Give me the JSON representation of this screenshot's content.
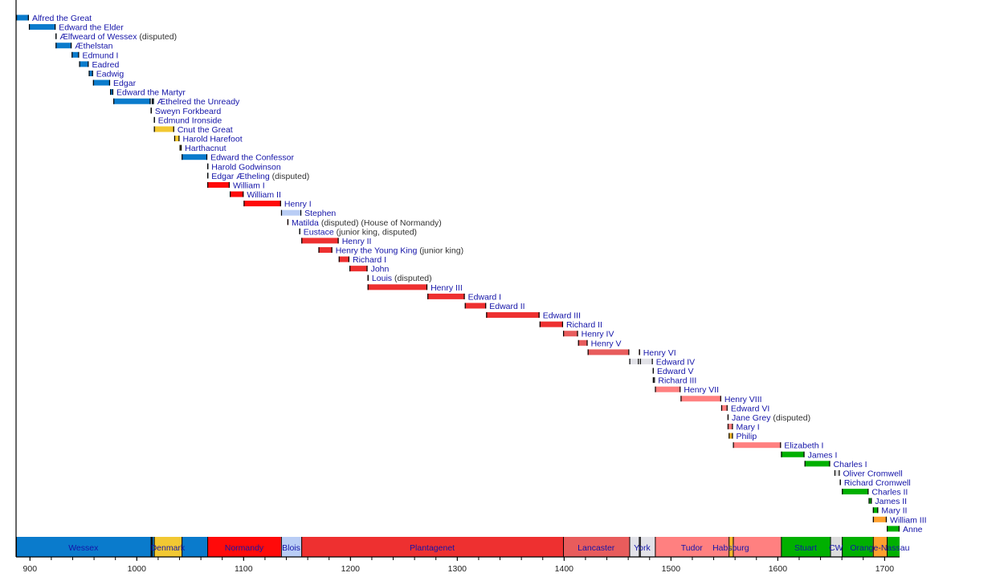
{
  "chart_data": {
    "type": "timeline",
    "title": "",
    "xlim": [
      887,
      1714
    ],
    "x_ticks": [
      900,
      1000,
      1100,
      1200,
      1300,
      1400,
      1500,
      1600,
      1700
    ],
    "minor_tick_step": 20,
    "grid": false,
    "colors": {
      "Wessex": "#0a7bcc",
      "Denmark": "#f2c832",
      "Sweyn": "#0a7bcc",
      "Normandy": "#ff0a0a",
      "Blois": "#b9cdf5",
      "Plantagenet": "#ee3030",
      "Lancaster": "#e85c5c",
      "York": "#e2e2e8",
      "Tudor": "#ff8080",
      "Habsburg": "#f5b82a",
      "Stuart": "#00b000",
      "CW": "#dcdcdc",
      "Orange-Nassau": "#ffa02e",
      "dark": "#1a1a1a"
    },
    "monarchs": [
      {
        "name": "Alfred the Great",
        "house": "Wessex",
        "reigns": [
          [
            871,
            899
          ]
        ]
      },
      {
        "name": "Edward the Elder",
        "house": "Wessex",
        "reigns": [
          [
            899,
            924
          ]
        ]
      },
      {
        "name": "Ælfweard of Wessex",
        "suffix": "(disputed)",
        "house": "Wessex",
        "reigns": [
          [
            924,
            924
          ]
        ]
      },
      {
        "name": "Æthelstan",
        "house": "Wessex",
        "reigns": [
          [
            924,
            939
          ]
        ]
      },
      {
        "name": "Edmund I",
        "house": "Wessex",
        "reigns": [
          [
            939,
            946
          ]
        ]
      },
      {
        "name": "Eadred",
        "house": "Wessex",
        "reigns": [
          [
            946,
            955
          ]
        ]
      },
      {
        "name": "Eadwig",
        "house": "Wessex",
        "reigns": [
          [
            955,
            959
          ]
        ]
      },
      {
        "name": "Edgar",
        "house": "Wessex",
        "reigns": [
          [
            959,
            975
          ]
        ]
      },
      {
        "name": "Edward the Martyr",
        "house": "Wessex",
        "reigns": [
          [
            975,
            978
          ]
        ]
      },
      {
        "name": "Æthelred the Unready",
        "house": "Wessex",
        "reigns": [
          [
            978,
            1013
          ],
          [
            1014,
            1016
          ]
        ]
      },
      {
        "name": "Sweyn Forkbeard",
        "house": "dark",
        "reigns": [
          [
            1013,
            1014
          ]
        ]
      },
      {
        "name": "Edmund Ironside",
        "house": "Wessex",
        "reigns": [
          [
            1016,
            1016
          ]
        ]
      },
      {
        "name": "Cnut the Great",
        "house": "Denmark",
        "reigns": [
          [
            1016,
            1035
          ]
        ]
      },
      {
        "name": "Harold Harefoot",
        "house": "Denmark",
        "reigns": [
          [
            1035,
            1040
          ]
        ]
      },
      {
        "name": "Harthacnut",
        "house": "Denmark",
        "reigns": [
          [
            1040,
            1042
          ]
        ]
      },
      {
        "name": "Edward the Confessor",
        "house": "Wessex",
        "reigns": [
          [
            1042,
            1066
          ]
        ]
      },
      {
        "name": "Harold Godwinson",
        "house": "Wessex",
        "reigns": [
          [
            1066,
            1066
          ]
        ]
      },
      {
        "name": "Edgar Ætheling",
        "suffix": "(disputed)",
        "house": "Wessex",
        "reigns": [
          [
            1066,
            1066
          ]
        ]
      },
      {
        "name": "William I",
        "house": "Normandy",
        "reigns": [
          [
            1066,
            1087
          ]
        ]
      },
      {
        "name": "William II",
        "house": "Normandy",
        "reigns": [
          [
            1087,
            1100
          ]
        ]
      },
      {
        "name": "Henry I",
        "house": "Normandy",
        "reigns": [
          [
            1100,
            1135
          ]
        ]
      },
      {
        "name": "Stephen",
        "house": "Blois",
        "reigns": [
          [
            1135,
            1154
          ]
        ]
      },
      {
        "name": "Matilda",
        "suffix": "(disputed) (House of Normandy)",
        "house": "Normandy",
        "reigns": [
          [
            1141,
            1141
          ]
        ]
      },
      {
        "name": "Eustace",
        "suffix": "(junior king, disputed)",
        "house": "Blois",
        "reigns": [
          [
            1152,
            1153
          ]
        ]
      },
      {
        "name": "Henry II",
        "house": "Plantagenet",
        "reigns": [
          [
            1154,
            1189
          ]
        ]
      },
      {
        "name": "Henry the Young King",
        "suffix": "(junior king)",
        "house": "Plantagenet",
        "reigns": [
          [
            1170,
            1183
          ]
        ]
      },
      {
        "name": "Richard I",
        "house": "Plantagenet",
        "reigns": [
          [
            1189,
            1199
          ]
        ]
      },
      {
        "name": "John",
        "house": "Plantagenet",
        "reigns": [
          [
            1199,
            1216
          ]
        ]
      },
      {
        "name": "Louis",
        "suffix": "(disputed)",
        "house": "Plantagenet",
        "reigns": [
          [
            1216,
            1217
          ]
        ]
      },
      {
        "name": "Henry III",
        "house": "Plantagenet",
        "reigns": [
          [
            1216,
            1272
          ]
        ]
      },
      {
        "name": "Edward I",
        "house": "Plantagenet",
        "reigns": [
          [
            1272,
            1307
          ]
        ]
      },
      {
        "name": "Edward II",
        "house": "Plantagenet",
        "reigns": [
          [
            1307,
            1327
          ]
        ]
      },
      {
        "name": "Edward III",
        "house": "Plantagenet",
        "reigns": [
          [
            1327,
            1377
          ]
        ]
      },
      {
        "name": "Richard II",
        "house": "Plantagenet",
        "reigns": [
          [
            1377,
            1399
          ]
        ]
      },
      {
        "name": "Henry IV",
        "house": "Lancaster",
        "reigns": [
          [
            1399,
            1413
          ]
        ]
      },
      {
        "name": "Henry V",
        "house": "Lancaster",
        "reigns": [
          [
            1413,
            1422
          ]
        ]
      },
      {
        "name": "Henry VI",
        "house": "Lancaster",
        "reigns": [
          [
            1422,
            1461
          ],
          [
            1470,
            1471
          ]
        ]
      },
      {
        "name": "Edward IV",
        "house": "York",
        "reigns": [
          [
            1461,
            1470
          ],
          [
            1471,
            1483
          ]
        ]
      },
      {
        "name": "Edward V",
        "house": "York",
        "reigns": [
          [
            1483,
            1483
          ]
        ]
      },
      {
        "name": "Richard III",
        "house": "York",
        "reigns": [
          [
            1483,
            1485
          ]
        ]
      },
      {
        "name": "Henry VII",
        "house": "Tudor",
        "reigns": [
          [
            1485,
            1509
          ]
        ]
      },
      {
        "name": "Henry VIII",
        "house": "Tudor",
        "reigns": [
          [
            1509,
            1547
          ]
        ]
      },
      {
        "name": "Edward VI",
        "house": "Tudor",
        "reigns": [
          [
            1547,
            1553
          ]
        ]
      },
      {
        "name": "Jane Grey",
        "suffix": "(disputed)",
        "house": "Tudor",
        "reigns": [
          [
            1553,
            1553
          ]
        ]
      },
      {
        "name": "Mary I",
        "house": "Tudor",
        "reigns": [
          [
            1553,
            1558
          ]
        ]
      },
      {
        "name": "Philip",
        "house": "Habsburg",
        "reigns": [
          [
            1554,
            1558
          ]
        ]
      },
      {
        "name": "Elizabeth I",
        "house": "Tudor",
        "reigns": [
          [
            1558,
            1603
          ]
        ]
      },
      {
        "name": "James I",
        "house": "Stuart",
        "reigns": [
          [
            1603,
            1625
          ]
        ]
      },
      {
        "name": "Charles I",
        "house": "Stuart",
        "reigns": [
          [
            1625,
            1649
          ]
        ]
      },
      {
        "name": "Oliver Cromwell",
        "house": "CW",
        "reigns": [
          [
            1653,
            1658
          ]
        ]
      },
      {
        "name": "Richard Cromwell",
        "house": "CW",
        "reigns": [
          [
            1658,
            1659
          ]
        ]
      },
      {
        "name": "Charles II",
        "house": "Stuart",
        "reigns": [
          [
            1660,
            1685
          ]
        ]
      },
      {
        "name": "James II",
        "house": "Stuart",
        "reigns": [
          [
            1685,
            1688
          ]
        ]
      },
      {
        "name": "Mary II",
        "house": "Stuart",
        "reigns": [
          [
            1689,
            1694
          ]
        ]
      },
      {
        "name": "William III",
        "house": "Orange-Nassau",
        "reigns": [
          [
            1689,
            1702
          ]
        ]
      },
      {
        "name": "Anne",
        "house": "Stuart",
        "reigns": [
          [
            1702,
            1714
          ]
        ]
      }
    ],
    "house_segments": [
      {
        "house": "Wessex",
        "span": [
          887,
          1013
        ]
      },
      {
        "house": "dark",
        "span": [
          1013,
          1014
        ]
      },
      {
        "house": "Wessex",
        "span": [
          1014,
          1016
        ]
      },
      {
        "house": "Denmark",
        "span": [
          1016,
          1042
        ]
      },
      {
        "house": "Wessex",
        "span": [
          1042,
          1066
        ]
      },
      {
        "house": "Normandy",
        "span": [
          1066,
          1135
        ]
      },
      {
        "house": "Blois",
        "span": [
          1135,
          1154
        ]
      },
      {
        "house": "Plantagenet",
        "span": [
          1154,
          1399
        ]
      },
      {
        "house": "Lancaster",
        "span": [
          1399,
          1461
        ]
      },
      {
        "house": "York",
        "span": [
          1461,
          1470
        ]
      },
      {
        "house": "dark",
        "span": [
          1470,
          1471
        ]
      },
      {
        "house": "York",
        "span": [
          1471,
          1485
        ]
      },
      {
        "house": "Tudor",
        "span": [
          1485,
          1554
        ]
      },
      {
        "house": "Habsburg",
        "span": [
          1554,
          1558
        ]
      },
      {
        "house": "Tudor",
        "span": [
          1558,
          1603
        ]
      },
      {
        "house": "Stuart",
        "span": [
          1603,
          1649
        ]
      },
      {
        "house": "CW",
        "span": [
          1649,
          1660
        ]
      },
      {
        "house": "Stuart",
        "span": [
          1660,
          1689
        ]
      },
      {
        "house": "Orange-Nassau",
        "span": [
          1689,
          1702
        ]
      },
      {
        "house": "Stuart",
        "span": [
          1702,
          1714
        ]
      }
    ],
    "house_labels": [
      {
        "label": "Wessex",
        "span": [
          887,
          1013
        ]
      },
      {
        "label": "Denmark",
        "span": [
          1016,
          1042
        ]
      },
      {
        "label": "Normandy",
        "span": [
          1066,
          1135
        ]
      },
      {
        "label": "Blois",
        "span": [
          1135,
          1154
        ]
      },
      {
        "label": "Plantagenet",
        "span": [
          1154,
          1399
        ]
      },
      {
        "label": "Lancaster",
        "span": [
          1399,
          1461
        ]
      },
      {
        "label": "York",
        "span": [
          1461,
          1485
        ]
      },
      {
        "label": "Tudor",
        "span": [
          1485,
          1554
        ]
      },
      {
        "label": "Habsburg",
        "span": [
          1554,
          1558
        ]
      },
      {
        "label": "Stuart",
        "span": [
          1603,
          1649
        ]
      },
      {
        "label": "CW",
        "span": [
          1649,
          1660
        ]
      },
      {
        "label": "Orange-Nassau",
        "span": [
          1689,
          1702
        ]
      }
    ]
  }
}
